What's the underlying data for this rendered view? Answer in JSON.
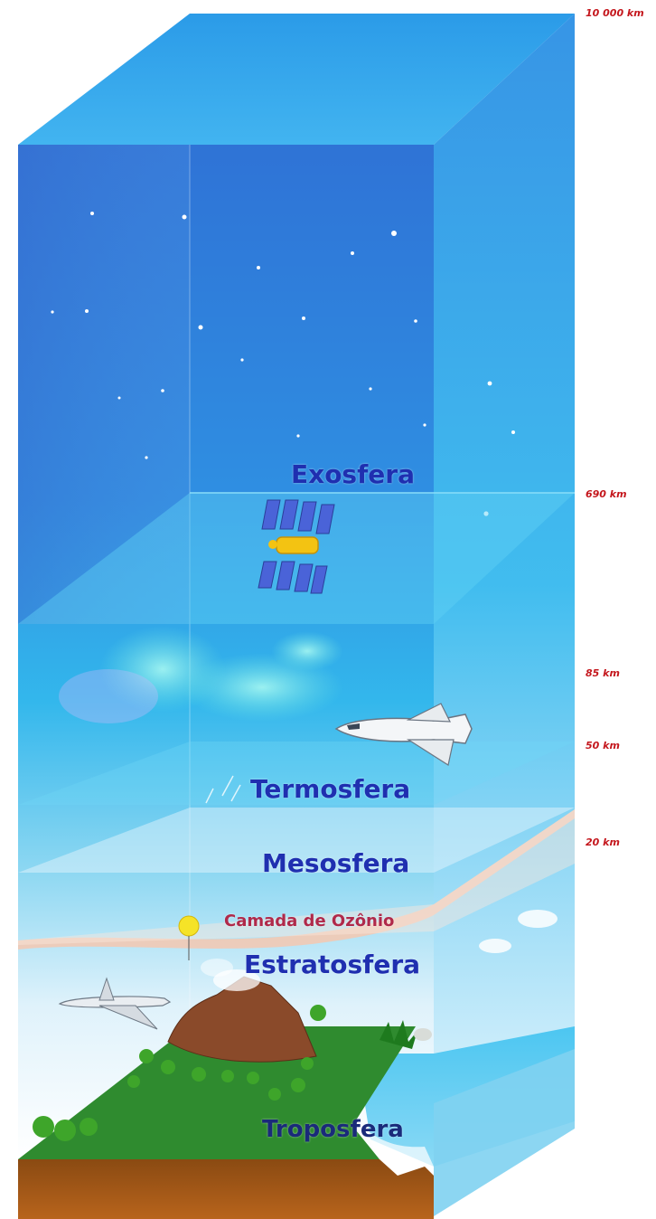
{
  "layers": {
    "exosfera": "Exosfera",
    "termosfera": "Termosfera",
    "mesosfera": "Mesosfera",
    "ozonio": "Camada de Ozônio",
    "estratosfera": "Estratosfera",
    "troposfera": "Troposfera"
  },
  "altitudes": {
    "top": "10 000 km",
    "exo": "690 km",
    "termo": "85 km",
    "meso": "50 km",
    "estrato": "20 km"
  },
  "colors": {
    "layer_label": "#1f2fb0",
    "ozone_label": "#b0294a",
    "altitude_label": "#c4161c",
    "ozone_band": "#f2c9b4"
  }
}
